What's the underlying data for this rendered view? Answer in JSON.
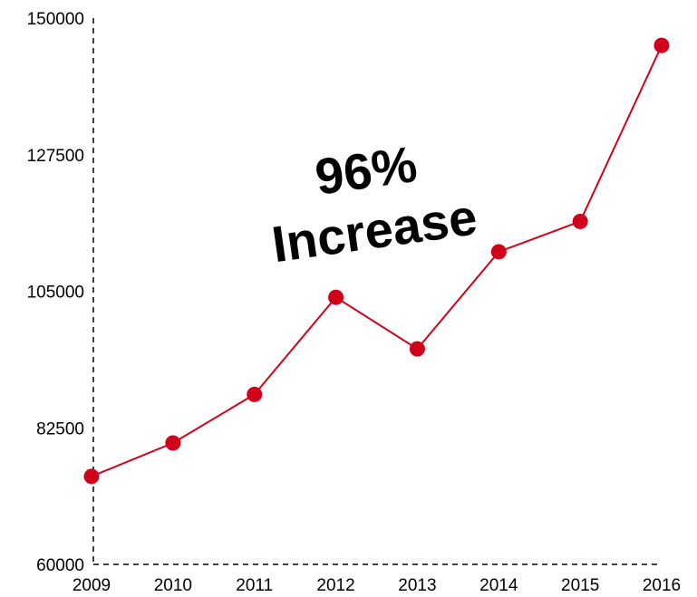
{
  "chart_data": {
    "type": "line",
    "title": "",
    "xlabel": "",
    "ylabel": "",
    "x": [
      "2009",
      "2010",
      "2011",
      "2012",
      "2013",
      "2014",
      "2015",
      "2016"
    ],
    "series": [
      {
        "values": [
          74500,
          80000,
          88000,
          104000,
          95500,
          111500,
          116500,
          145500
        ],
        "color": "#d0021b"
      }
    ],
    "ylim": [
      60000,
      150000
    ],
    "yticks": [
      "60000",
      "82500",
      "105000",
      "127500",
      "150000"
    ],
    "grid": false,
    "axis_style": "dashed",
    "annotation": {
      "lines": [
        "96%",
        "Increase"
      ]
    }
  }
}
